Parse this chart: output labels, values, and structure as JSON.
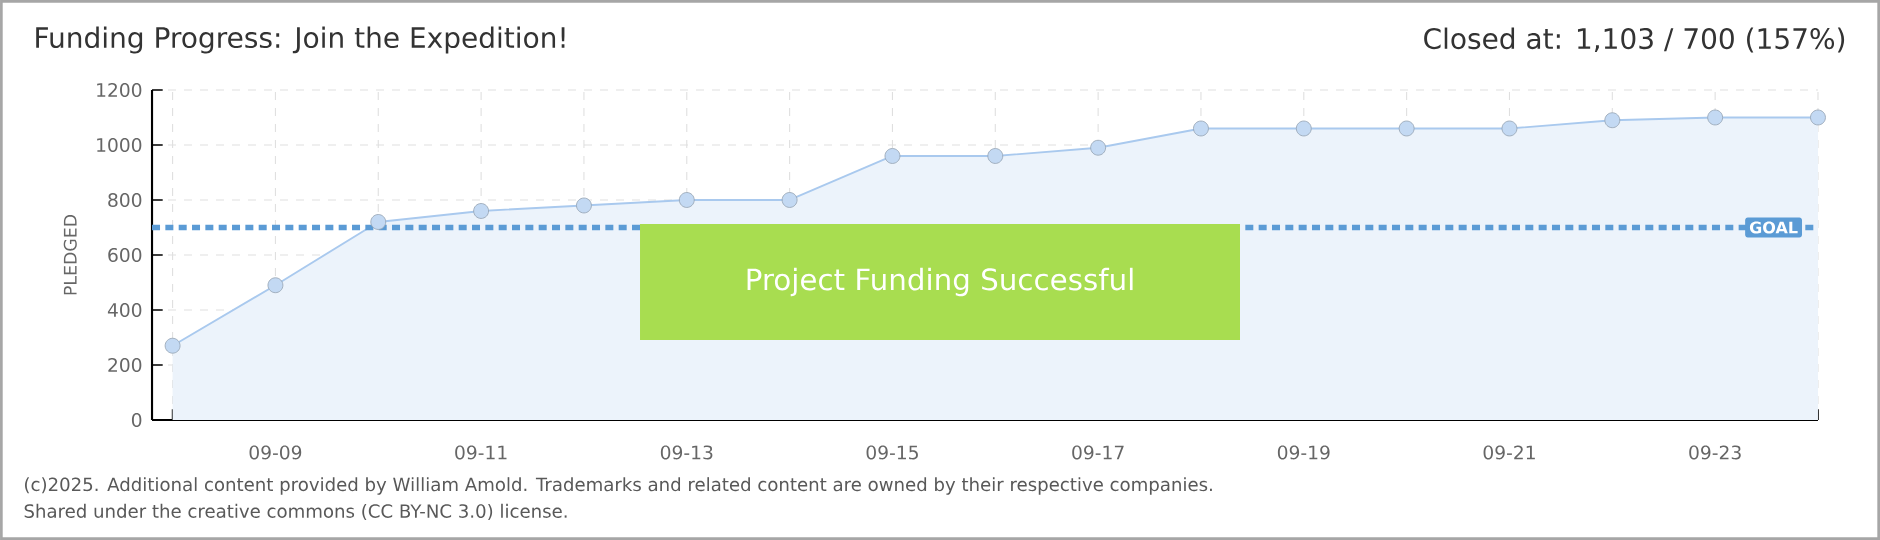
{
  "chart_data": {
    "type": "area",
    "title": "Funding Progress: Join the Expedition!",
    "subtitle": "Closed at: 1,103 / 700 (157%)",
    "ylabel": "PLEDGED",
    "categories": [
      null,
      "09-09",
      null,
      "09-11",
      null,
      "09-13",
      null,
      "09-15",
      null,
      "09-17",
      null,
      "09-19",
      null,
      "09-21",
      null,
      "09-23",
      null
    ],
    "series": [
      {
        "color": "#a9c9ee",
        "values": [
          270,
          490,
          720,
          760,
          780,
          800,
          800,
          960,
          960,
          990,
          1060,
          1060,
          1060,
          1060,
          1090,
          1100,
          1100
        ]
      }
    ],
    "ylim": [
      0,
      1200
    ],
    "yticks": [
      0,
      200,
      400,
      600,
      800,
      1000,
      1200
    ],
    "grid": true,
    "marker": "circle",
    "ref_lines": [
      {
        "axis": "y",
        "value": 700,
        "label": "GOAL",
        "color": "#5b9bd5",
        "line_style": "dashed"
      }
    ],
    "annotations": [
      "Project Funding Successful",
      "(c)2025. Additional content provided by William Amold. Trademarks and related content are owned by their respective companies.",
      "Shared under the creative commons (CC BY-NC 3.0) license."
    ]
  }
}
